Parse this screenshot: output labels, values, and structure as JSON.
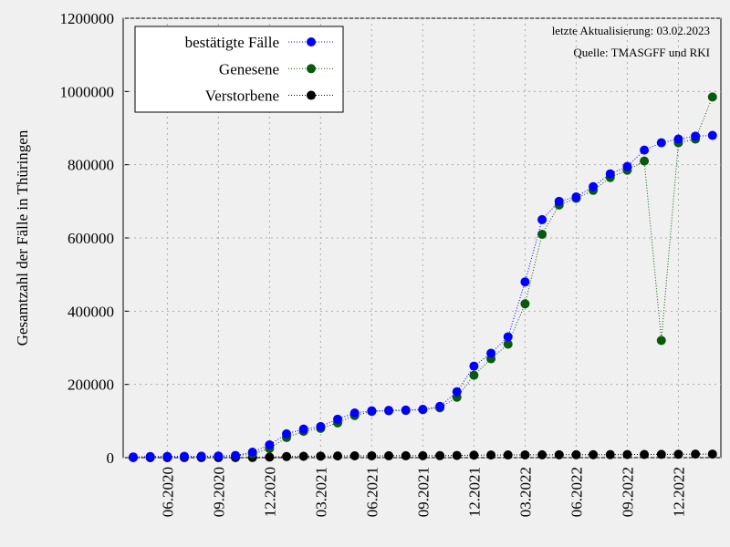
{
  "chart_data": {
    "type": "line",
    "ylabel": "Gesamtzahl der Fälle in Thüringen",
    "annotations": [
      "letzte Aktualisierung: 03.02.2023",
      "Quelle: TMASGFF und RKI"
    ],
    "categories": [
      "04.2020",
      "05.2020",
      "06.2020",
      "07.2020",
      "08.2020",
      "09.2020",
      "10.2020",
      "11.2020",
      "12.2020",
      "01.2021",
      "02.2021",
      "03.2021",
      "04.2021",
      "05.2021",
      "06.2021",
      "07.2021",
      "08.2021",
      "09.2021",
      "10.2021",
      "11.2021",
      "12.2021",
      "01.2022",
      "02.2022",
      "03.2022",
      "04.2022",
      "05.2022",
      "06.2022",
      "07.2022",
      "08.2022",
      "09.2022",
      "10.2022",
      "11.2022",
      "12.2022",
      "01.2023",
      "02.2023"
    ],
    "xticks": [
      "06.2020",
      "09.2020",
      "12.2020",
      "03.2021",
      "06.2021",
      "09.2021",
      "12.2021",
      "03.2022",
      "06.2022",
      "09.2022",
      "12.2022"
    ],
    "series": [
      {
        "name": "bestätigte Fälle",
        "color": "#0000ff",
        "values": [
          2000,
          3000,
          3200,
          3500,
          4000,
          4500,
          6000,
          15000,
          35000,
          65000,
          78000,
          85000,
          105000,
          122000,
          128000,
          129000,
          130000,
          132000,
          140000,
          180000,
          250000,
          285000,
          330000,
          480000,
          650000,
          700000,
          712000,
          740000,
          775000,
          795000,
          840000,
          860000,
          870000,
          878000,
          880000
        ]
      },
      {
        "name": "Genesene",
        "color": "#0b5a0b",
        "values": [
          500,
          2500,
          3000,
          3300,
          3700,
          4200,
          5000,
          10000,
          25000,
          55000,
          72000,
          80000,
          95000,
          115000,
          126000,
          128000,
          129000,
          131000,
          136000,
          165000,
          225000,
          270000,
          310000,
          420000,
          610000,
          690000,
          708000,
          730000,
          765000,
          785000,
          810000,
          320000,
          860000,
          870000,
          985000
        ]
      },
      {
        "name": "Verstorbene",
        "color": "#000000",
        "values": [
          50,
          100,
          150,
          180,
          190,
          200,
          250,
          500,
          1500,
          3000,
          3800,
          4200,
          4700,
          5000,
          5100,
          5150,
          5200,
          5300,
          5500,
          6000,
          6800,
          7200,
          7400,
          7600,
          7800,
          7900,
          8000,
          8100,
          8300,
          8500,
          8700,
          9000,
          9300,
          9600,
          9800
        ]
      }
    ],
    "ylim": [
      0,
      1200000
    ],
    "yticks": [
      0,
      200000,
      400000,
      600000,
      800000,
      1000000,
      1200000
    ],
    "grid": true,
    "legend": "upper left"
  }
}
